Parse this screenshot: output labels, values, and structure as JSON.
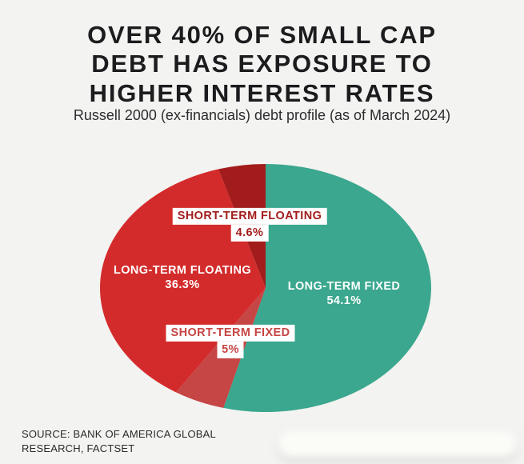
{
  "header": {
    "title_lines": [
      "OVER 40% OF SMALL CAP",
      "DEBT HAS EXPOSURE TO",
      "HIGHER INTEREST RATES"
    ],
    "subtitle": "Russell 2000 (ex-financials) debt profile (as of March 2024)"
  },
  "chart_data": {
    "type": "pie",
    "title": "Russell 2000 (ex-financials) debt profile (as of March 2024)",
    "start_angle_deg": -90,
    "direction": "clockwise",
    "legend": "labels-on-chart",
    "slices": [
      {
        "label": "LONG-TERM FIXED",
        "value": 54.1,
        "display": "54.1%",
        "color": "#3aa78e",
        "label_style": "on-slice"
      },
      {
        "label": "SHORT-TERM FIXED",
        "value": 5.0,
        "display": "5%",
        "color": "#c64545",
        "label_style": "chip"
      },
      {
        "label": "LONG-TERM FLOATING",
        "value": 36.3,
        "display": "36.3%",
        "color": "#d32b2b",
        "label_style": "on-slice"
      },
      {
        "label": "SHORT-TERM FLOATING",
        "value": 4.6,
        "display": "4.6%",
        "color": "#a31c1c",
        "label_style": "chip"
      }
    ],
    "colors": {
      "background": "#f3f3f1",
      "teal": "#3aa78e",
      "red": "#d32b2b",
      "muted_red": "#c64545",
      "dark_red": "#a31c1c"
    }
  },
  "footer": {
    "source": "SOURCE: BANK OF AMERICA GLOBAL RESEARCH, FACTSET"
  }
}
